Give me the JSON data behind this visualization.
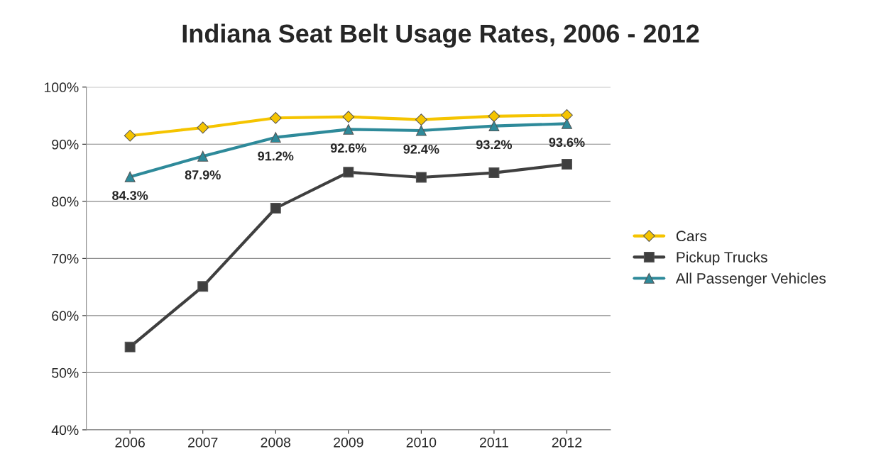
{
  "chart_data": {
    "type": "line",
    "title": "Indiana Seat Belt Usage Rates, 2006 - 2012",
    "categories": [
      "2006",
      "2007",
      "2008",
      "2009",
      "2010",
      "2011",
      "2012"
    ],
    "series": [
      {
        "name": "Cars",
        "color": "#f5c400",
        "marker": "diamond",
        "values": [
          91.5,
          92.9,
          94.6,
          94.8,
          94.3,
          94.9,
          95.1
        ]
      },
      {
        "name": "Pickup Trucks",
        "color": "#3f3f3f",
        "marker": "square",
        "values": [
          54.5,
          65.1,
          78.8,
          85.1,
          84.2,
          85.0,
          86.5
        ]
      },
      {
        "name": "All Passenger Vehicles",
        "color": "#2e8a9a",
        "marker": "triangle",
        "values": [
          84.3,
          87.9,
          91.2,
          92.6,
          92.4,
          93.2,
          93.6
        ],
        "value_labels": [
          "84.3%",
          "87.9%",
          "91.2%",
          "92.6%",
          "92.4%",
          "93.2%",
          "93.6%"
        ]
      }
    ],
    "ylim": [
      40,
      100
    ],
    "yticks": [
      {
        "value": 40,
        "label": "40%"
      },
      {
        "value": 50,
        "label": "50%"
      },
      {
        "value": 60,
        "label": "60%"
      },
      {
        "value": 70,
        "label": "70%"
      },
      {
        "value": 80,
        "label": "80%"
      },
      {
        "value": 90,
        "label": "90%"
      },
      {
        "value": 100,
        "label": "100%"
      }
    ],
    "grid": "y",
    "legend": "right"
  }
}
